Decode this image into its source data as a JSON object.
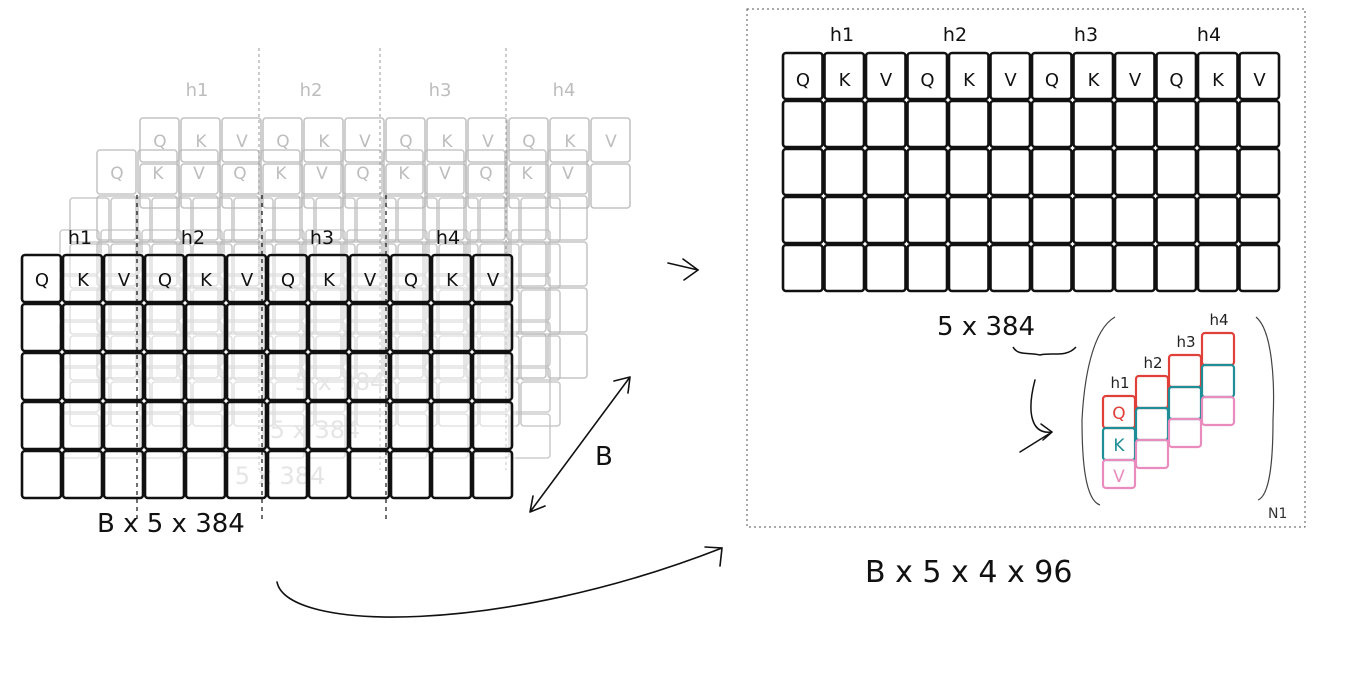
{
  "colors": {
    "ink": "#111111",
    "faded_ink": "#bdbdbd",
    "q_red": "#e0403a",
    "k_teal": "#1f8e96",
    "v_pink": "#e98bbd",
    "box_border": "#555555"
  },
  "left_stack": {
    "front_head_labels": [
      "h1",
      "h2",
      "h3",
      "h4"
    ],
    "back_head_labels": [
      "h1",
      "h2",
      "h3",
      "h4"
    ],
    "cell_labels": [
      "Q",
      "K",
      "V",
      "Q",
      "K",
      "V",
      "Q",
      "K",
      "V",
      "Q",
      "K",
      "V"
    ],
    "ghost_labels": [
      "5 x 384",
      "5 x 384",
      "5 x 384"
    ],
    "depth_label": "B",
    "shape_label": "B x 5 x 384",
    "layer_count": 5,
    "row_count": 5,
    "col_count": 12
  },
  "reshaped_box": {
    "head_labels": [
      "h1",
      "h2",
      "h3",
      "h4"
    ],
    "cell_labels": [
      "Q",
      "K",
      "V",
      "Q",
      "K",
      "V",
      "Q",
      "K",
      "V",
      "Q",
      "K",
      "V"
    ],
    "row_count": 5,
    "col_count": 12,
    "row_shape_label": "5 x 384",
    "corner_label": "N1",
    "shape_label": "B x 5 x 4 x 96"
  },
  "head_split_detail": {
    "head_labels": [
      "h1",
      "h2",
      "h3",
      "h4"
    ],
    "stack_labels": [
      "Q",
      "K",
      "V"
    ]
  }
}
